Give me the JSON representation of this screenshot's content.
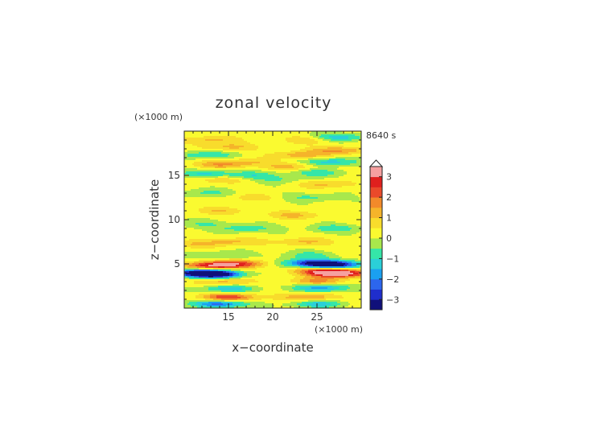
{
  "chart_data": {
    "type": "heatmap",
    "title": "zonal velocity",
    "time_label": "8640 s",
    "xlabel": "x−coordinate",
    "ylabel": "z−coordinate",
    "x_unit": "(×1000 m)",
    "y_unit": "(×1000 m)",
    "xlim": [
      10,
      30
    ],
    "ylim": [
      0,
      20
    ],
    "x_ticks": [
      "15",
      "20",
      "25"
    ],
    "x_tick_values": [
      15,
      20,
      25
    ],
    "y_ticks": [
      "5",
      "10",
      "15"
    ],
    "y_tick_values": [
      5,
      10,
      15
    ],
    "colorbar": {
      "labels": [
        "3",
        "2",
        "1",
        "0",
        "−1",
        "−2",
        "−3"
      ],
      "label_values": [
        3,
        2,
        1,
        0,
        -1,
        -2,
        -3
      ],
      "levels": [
        -3.5,
        -3,
        -2.5,
        -2,
        -1.5,
        -1,
        -0.5,
        0,
        0.5,
        1,
        1.5,
        2,
        2.5,
        3,
        3.5
      ],
      "colors": [
        "#10107a",
        "#1f2ecc",
        "#2c66ee",
        "#1aa0f0",
        "#2bd0d8",
        "#35e6a8",
        "#a8e84c",
        "#fafa30",
        "#f8dc2c",
        "#f5b42a",
        "#f28a2a",
        "#ea4a2a",
        "#e0201e",
        "#f6a0a0"
      ],
      "overflow_top": true
    },
    "features": [
      {
        "x": 14.0,
        "z": 0.5,
        "value": -2.5
      },
      {
        "x": 25.0,
        "z": 0.5,
        "value": -1.5
      },
      {
        "x": 15.0,
        "z": 1.2,
        "value": 2.5
      },
      {
        "x": 24.0,
        "z": 1.2,
        "value": 1.5
      },
      {
        "x": 15.0,
        "z": 2.2,
        "value": -1.5
      },
      {
        "x": 25.5,
        "z": 2.3,
        "value": -2.0
      },
      {
        "x": 14.5,
        "z": 3.0,
        "value": 1.2
      },
      {
        "x": 25.0,
        "z": 3.0,
        "value": 1.5
      },
      {
        "x": 13.5,
        "z": 3.8,
        "value": -3.5
      },
      {
        "x": 11.5,
        "z": 4.0,
        "value": -3.0
      },
      {
        "x": 27.5,
        "z": 3.9,
        "value": 3.5
      },
      {
        "x": 25.5,
        "z": 4.2,
        "value": 2.0
      },
      {
        "x": 13.0,
        "z": 4.8,
        "value": 2.8
      },
      {
        "x": 16.5,
        "z": 5.0,
        "value": 2.0
      },
      {
        "x": 27.0,
        "z": 4.9,
        "value": -3.5
      },
      {
        "x": 24.0,
        "z": 5.1,
        "value": -2.5
      },
      {
        "x": 14.0,
        "z": 6.0,
        "value": -0.8
      },
      {
        "x": 24.0,
        "z": 6.0,
        "value": -0.8
      },
      {
        "x": 15.5,
        "z": 7.5,
        "value": 1.0
      },
      {
        "x": 23.5,
        "z": 7.5,
        "value": 1.0
      },
      {
        "x": 11.0,
        "z": 7.2,
        "value": 0.8
      },
      {
        "x": 17.0,
        "z": 9.0,
        "value": -1.0
      },
      {
        "x": 12.0,
        "z": 9.5,
        "value": -0.6
      },
      {
        "x": 27.0,
        "z": 9.0,
        "value": -1.0
      },
      {
        "x": 22.5,
        "z": 10.5,
        "value": 1.0
      },
      {
        "x": 14.0,
        "z": 11.0,
        "value": 0.8
      },
      {
        "x": 24.5,
        "z": 12.5,
        "value": -0.8
      },
      {
        "x": 12.5,
        "z": 13.0,
        "value": -0.8
      },
      {
        "x": 17.5,
        "z": 12.5,
        "value": 0.6
      },
      {
        "x": 26.0,
        "z": 14.0,
        "value": 1.0
      },
      {
        "x": 14.0,
        "z": 14.5,
        "value": 0.8
      },
      {
        "x": 21.0,
        "z": 14.5,
        "value": -0.6
      },
      {
        "x": 12.5,
        "z": 15.2,
        "value": -1.2
      },
      {
        "x": 17.5,
        "z": 15.0,
        "value": -1.0
      },
      {
        "x": 25.0,
        "z": 15.3,
        "value": -1.0
      },
      {
        "x": 14.0,
        "z": 16.2,
        "value": 1.2
      },
      {
        "x": 22.0,
        "z": 16.0,
        "value": 1.0
      },
      {
        "x": 17.0,
        "z": 16.5,
        "value": 0.8
      },
      {
        "x": 26.5,
        "z": 16.5,
        "value": -1.5
      },
      {
        "x": 12.5,
        "z": 17.3,
        "value": -1.2
      },
      {
        "x": 23.0,
        "z": 17.3,
        "value": 1.2
      },
      {
        "x": 27.5,
        "z": 17.8,
        "value": 1.5
      },
      {
        "x": 15.0,
        "z": 18.2,
        "value": 1.0
      },
      {
        "x": 13.0,
        "z": 19.0,
        "value": 1.0
      },
      {
        "x": 27.5,
        "z": 19.3,
        "value": -1.5
      },
      {
        "x": 24.0,
        "z": 19.0,
        "value": 0.8
      }
    ]
  }
}
